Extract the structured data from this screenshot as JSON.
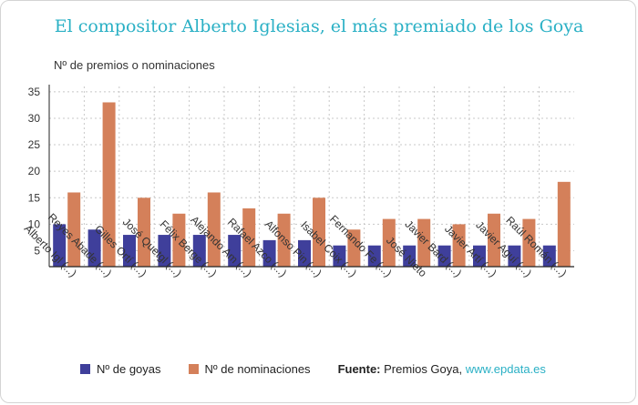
{
  "title": "El compositor Alberto Iglesias, el más premiado de los Goya",
  "chart_data": {
    "type": "bar",
    "ylabel": "Nº de premios o nominaciones",
    "ylim": [
      2,
      36
    ],
    "yticks": [
      5,
      10,
      15,
      20,
      25,
      30,
      35
    ],
    "grid": true,
    "legend_position": "bottom",
    "categories": [
      "Alberto Igl (...)",
      "Reyes Abade (...)",
      "Gilles Ortí (...)",
      "José Quetgl (...)",
      "Félix Berge (...)",
      "Alejando Am (...)",
      "Rafael Azco (...)",
      "Alfonso Pin (...)",
      "Isabel Coix (...)",
      "Fernando Fe (...)",
      "José Nieto",
      "Javier Bard (...)",
      "Javier Artí (...)",
      "Javier Aguí (...)",
      "Raúl Román (...)"
    ],
    "series": [
      {
        "name": "Nº de goyas",
        "color": "#3f3f9b",
        "values": [
          10,
          9,
          8,
          8,
          8,
          8,
          7,
          7,
          6,
          6,
          6,
          6,
          6,
          6,
          6
        ]
      },
      {
        "name": "Nº de nominaciones",
        "color": "#d4805a",
        "values": [
          16,
          33,
          15,
          12,
          16,
          13,
          12,
          15,
          9,
          11,
          11,
          10,
          12,
          11,
          18
        ]
      }
    ]
  },
  "source": {
    "label": "Fuente:",
    "text": "Premios Goya,",
    "link": "www.epdata.es"
  }
}
